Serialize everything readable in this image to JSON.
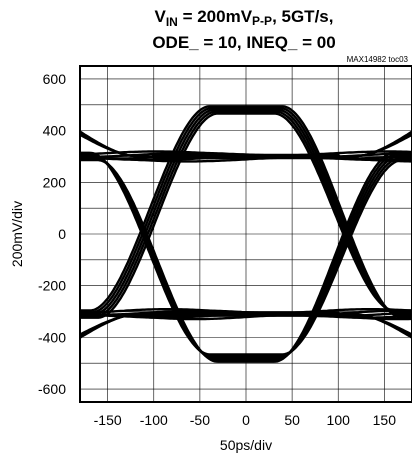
{
  "chart_data": {
    "type": "line",
    "title": {
      "prefix": "V",
      "subscript": "IN",
      "mid": " = 200mV",
      "subscript2": "P-P",
      "suffix": ", 5GT/s,"
    },
    "title_line2": "ODE_ = 10, INEQ_ = 00",
    "tag": "MAX14982 toc03",
    "xlabel": "50ps/div",
    "ylabel": "200mV/div",
    "xlim": [
      -180,
      180
    ],
    "ylim": [
      -650,
      650
    ],
    "xticks": [
      "-150",
      "-100",
      "-50",
      "0",
      "50",
      "100",
      "150"
    ],
    "yticks": [
      "600",
      "400",
      "200",
      "0",
      "-200",
      "-400",
      "-600"
    ],
    "grid": true,
    "eye_crossings_ps": [
      -100,
      100
    ],
    "levels_mV": {
      "high_peak": 480,
      "high_settled": 300,
      "low_settled": -310,
      "low_peak": -480
    },
    "trace_color": "#000000"
  }
}
